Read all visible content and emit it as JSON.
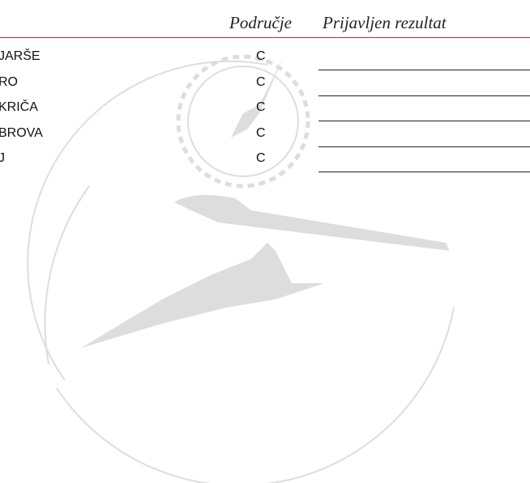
{
  "header": {
    "columns": [
      "Područje",
      "Prijavljen rezultat"
    ]
  },
  "table": {
    "rows": [
      [
        "JARŠE",
        "C"
      ],
      [
        "RO",
        "C"
      ],
      [
        "KRIČA",
        "C"
      ],
      [
        "BROVA",
        "C"
      ],
      [
        "J",
        "C"
      ]
    ]
  }
}
